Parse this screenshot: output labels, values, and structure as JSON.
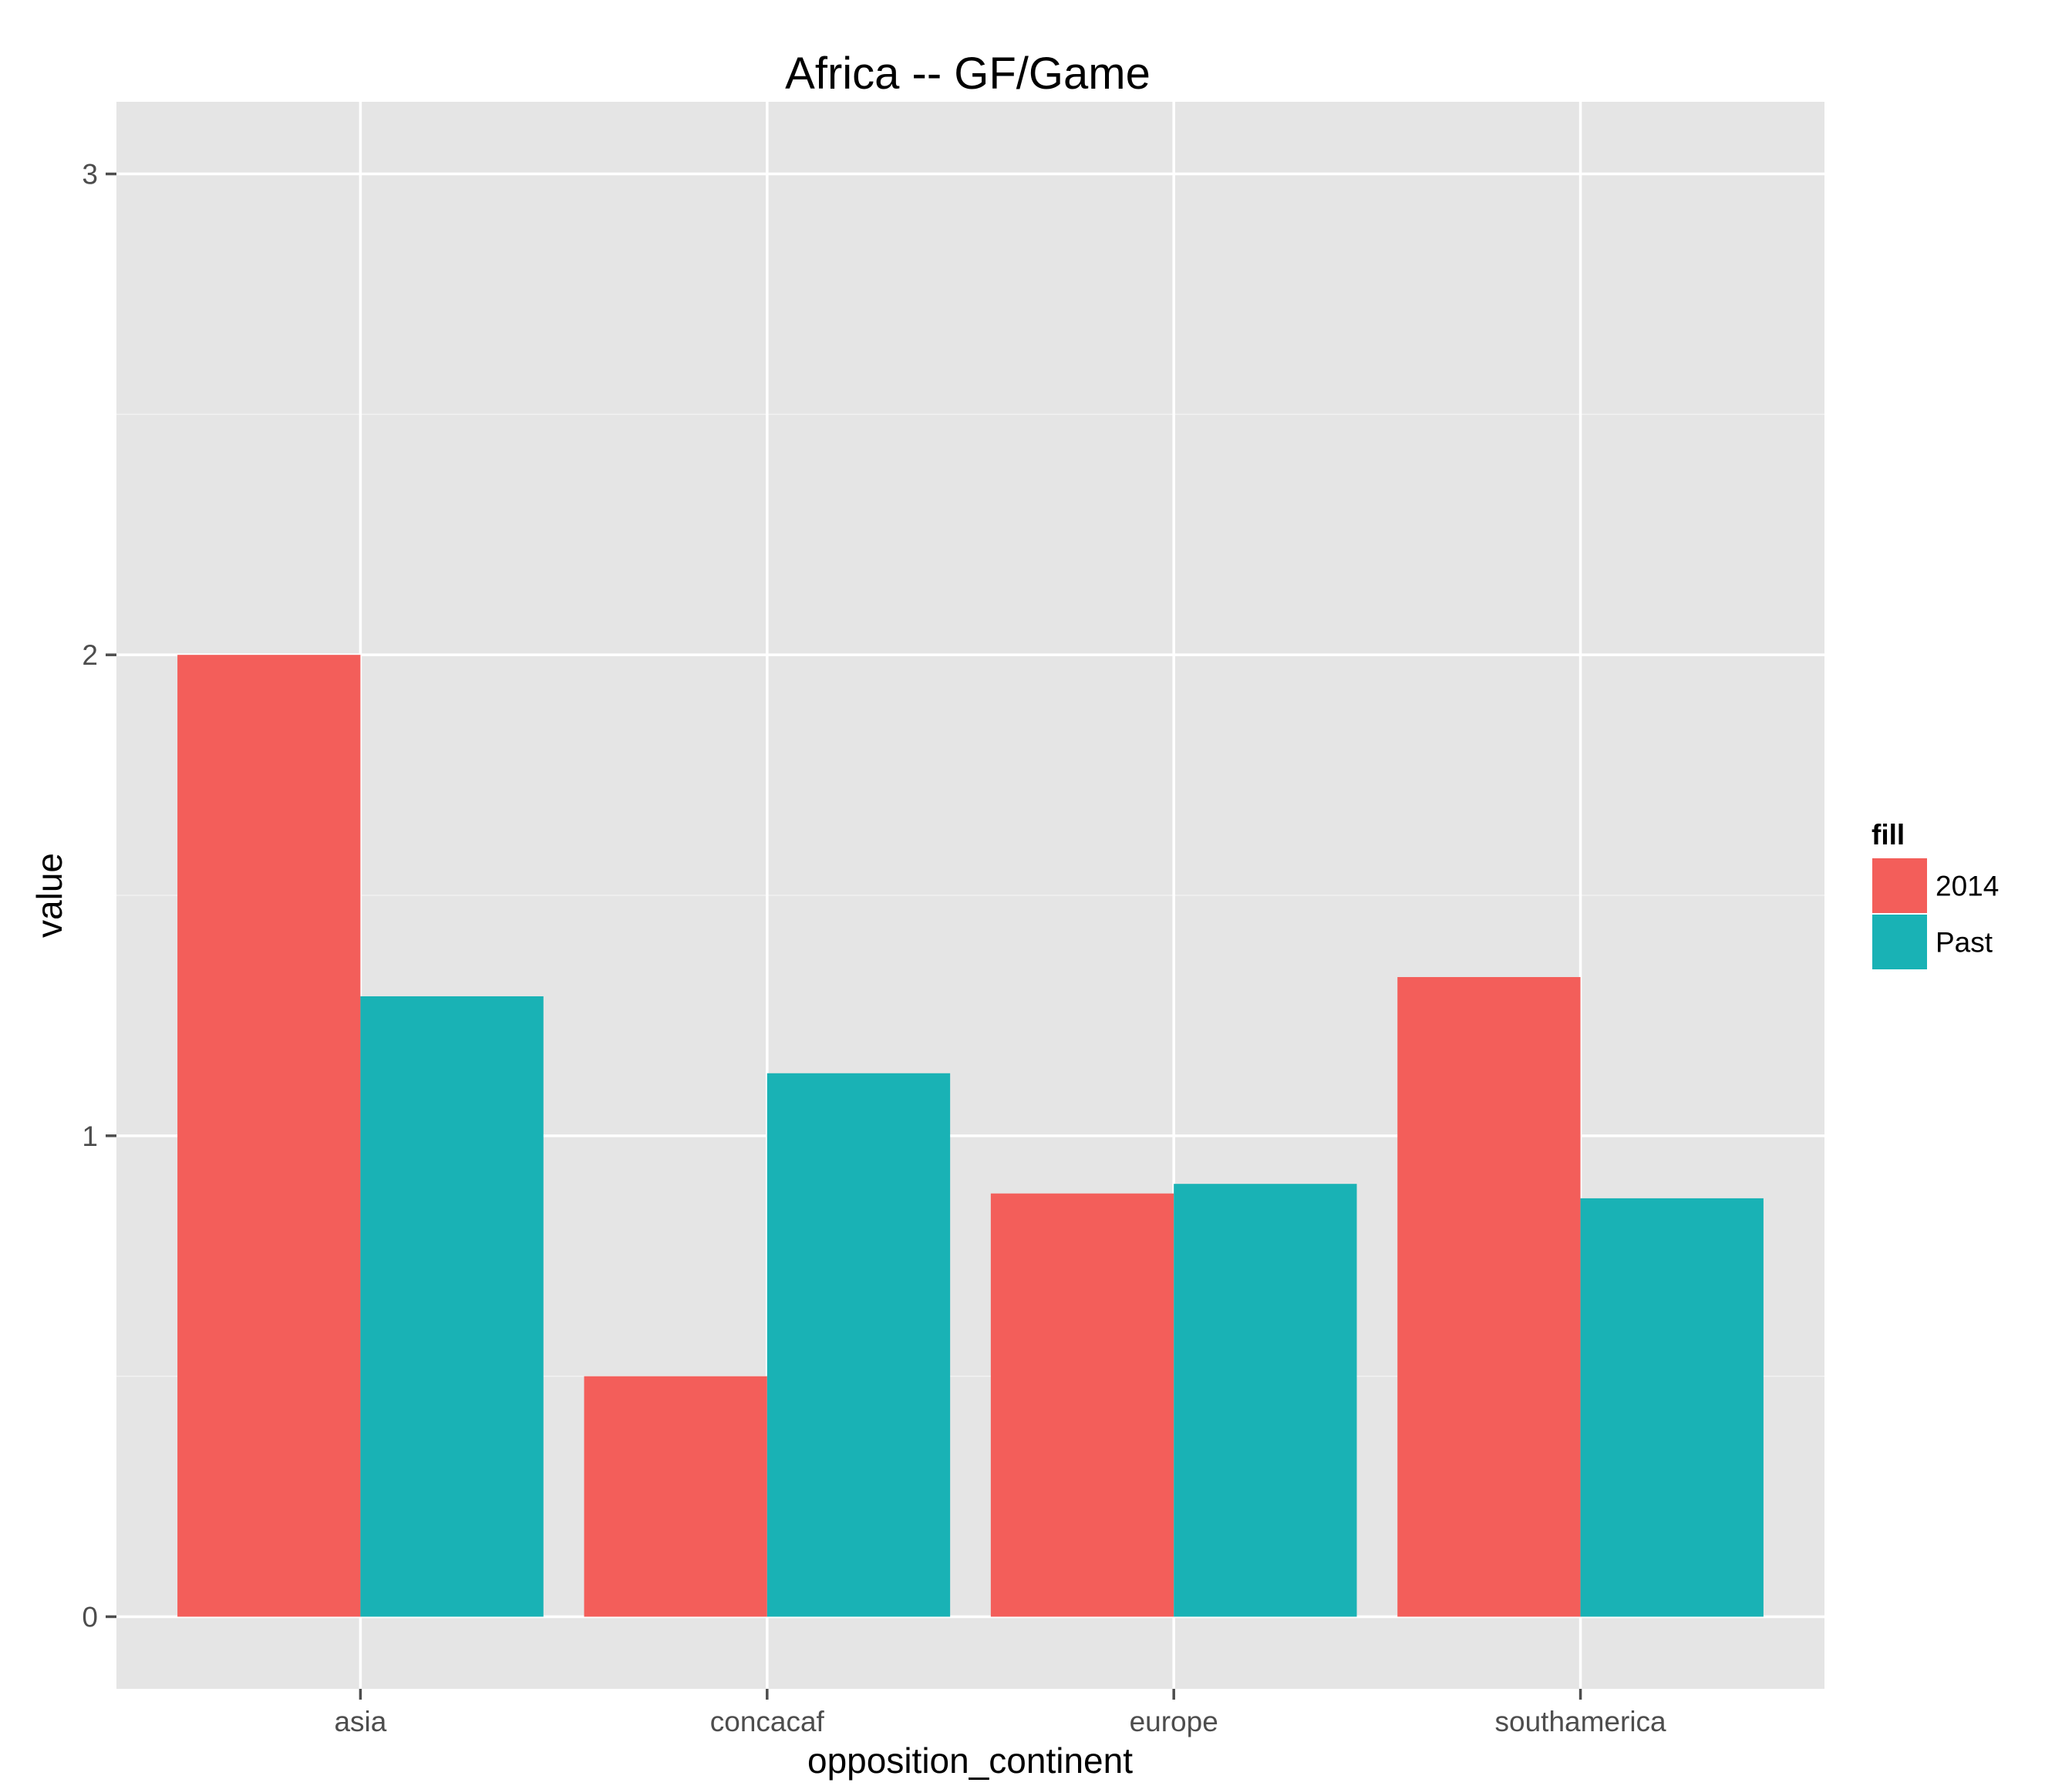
{
  "chart_data": {
    "type": "bar",
    "title": "Africa -- GF/Game",
    "xlabel": "opposition_continent",
    "ylabel": "value",
    "categories": [
      "asia",
      "concacaf",
      "europe",
      "southamerica"
    ],
    "series": [
      {
        "name": "2014",
        "color": "#f35e5a",
        "values": [
          2.0,
          0.5,
          0.88,
          1.33
        ]
      },
      {
        "name": "Past",
        "color": "#19b2b5",
        "values": [
          1.29,
          1.13,
          0.9,
          0.87
        ]
      }
    ],
    "ylim": [
      -0.15,
      3.15
    ],
    "yticks": [
      0,
      1,
      2,
      3
    ],
    "ytick_labels": [
      "0",
      "1",
      "2",
      "3"
    ],
    "grid": true,
    "legend": {
      "title": "fill",
      "position": "right"
    }
  }
}
